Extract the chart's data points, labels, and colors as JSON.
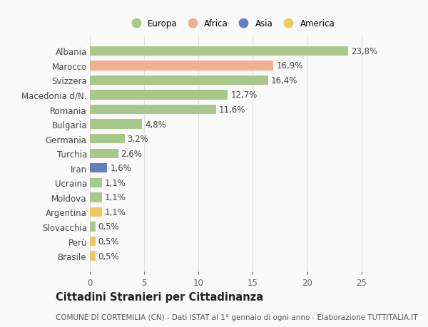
{
  "countries": [
    "Albania",
    "Marocco",
    "Svizzera",
    "Macedonia d/N.",
    "Romania",
    "Bulgaria",
    "Germania",
    "Turchia",
    "Iran",
    "Ucraina",
    "Moldova",
    "Argentina",
    "Slovacchia",
    "Perù",
    "Brasile"
  ],
  "values": [
    23.8,
    16.9,
    16.4,
    12.7,
    11.6,
    4.8,
    3.2,
    2.6,
    1.6,
    1.1,
    1.1,
    1.1,
    0.5,
    0.5,
    0.5
  ],
  "labels": [
    "23,8%",
    "16,9%",
    "16,4%",
    "12,7%",
    "11,6%",
    "4,8%",
    "3,2%",
    "2,6%",
    "1,6%",
    "1,1%",
    "1,1%",
    "1,1%",
    "0,5%",
    "0,5%",
    "0,5%"
  ],
  "continents": [
    "Europa",
    "Africa",
    "Europa",
    "Europa",
    "Europa",
    "Europa",
    "Europa",
    "Europa",
    "Asia",
    "Europa",
    "Europa",
    "America",
    "Europa",
    "America",
    "America"
  ],
  "continent_colors": {
    "Europa": "#a8c88a",
    "Africa": "#f0b090",
    "Asia": "#6080c0",
    "America": "#f0c860"
  },
  "legend_order": [
    "Europa",
    "Africa",
    "Asia",
    "America"
  ],
  "title": "Cittadini Stranieri per Cittadinanza",
  "subtitle": "COMUNE DI CORTEMILIA (CN) - Dati ISTAT al 1° gennaio di ogni anno - Elaborazione TUTTITALIA.IT",
  "xlim": [
    0,
    26
  ],
  "xticks": [
    0,
    5,
    10,
    15,
    20,
    25
  ],
  "bg_color": "#f9f9f9",
  "grid_color": "#e0e0e0",
  "bar_height": 0.65,
  "label_fontsize": 8.5,
  "tick_fontsize": 8.5,
  "title_fontsize": 10.5,
  "subtitle_fontsize": 7.5
}
